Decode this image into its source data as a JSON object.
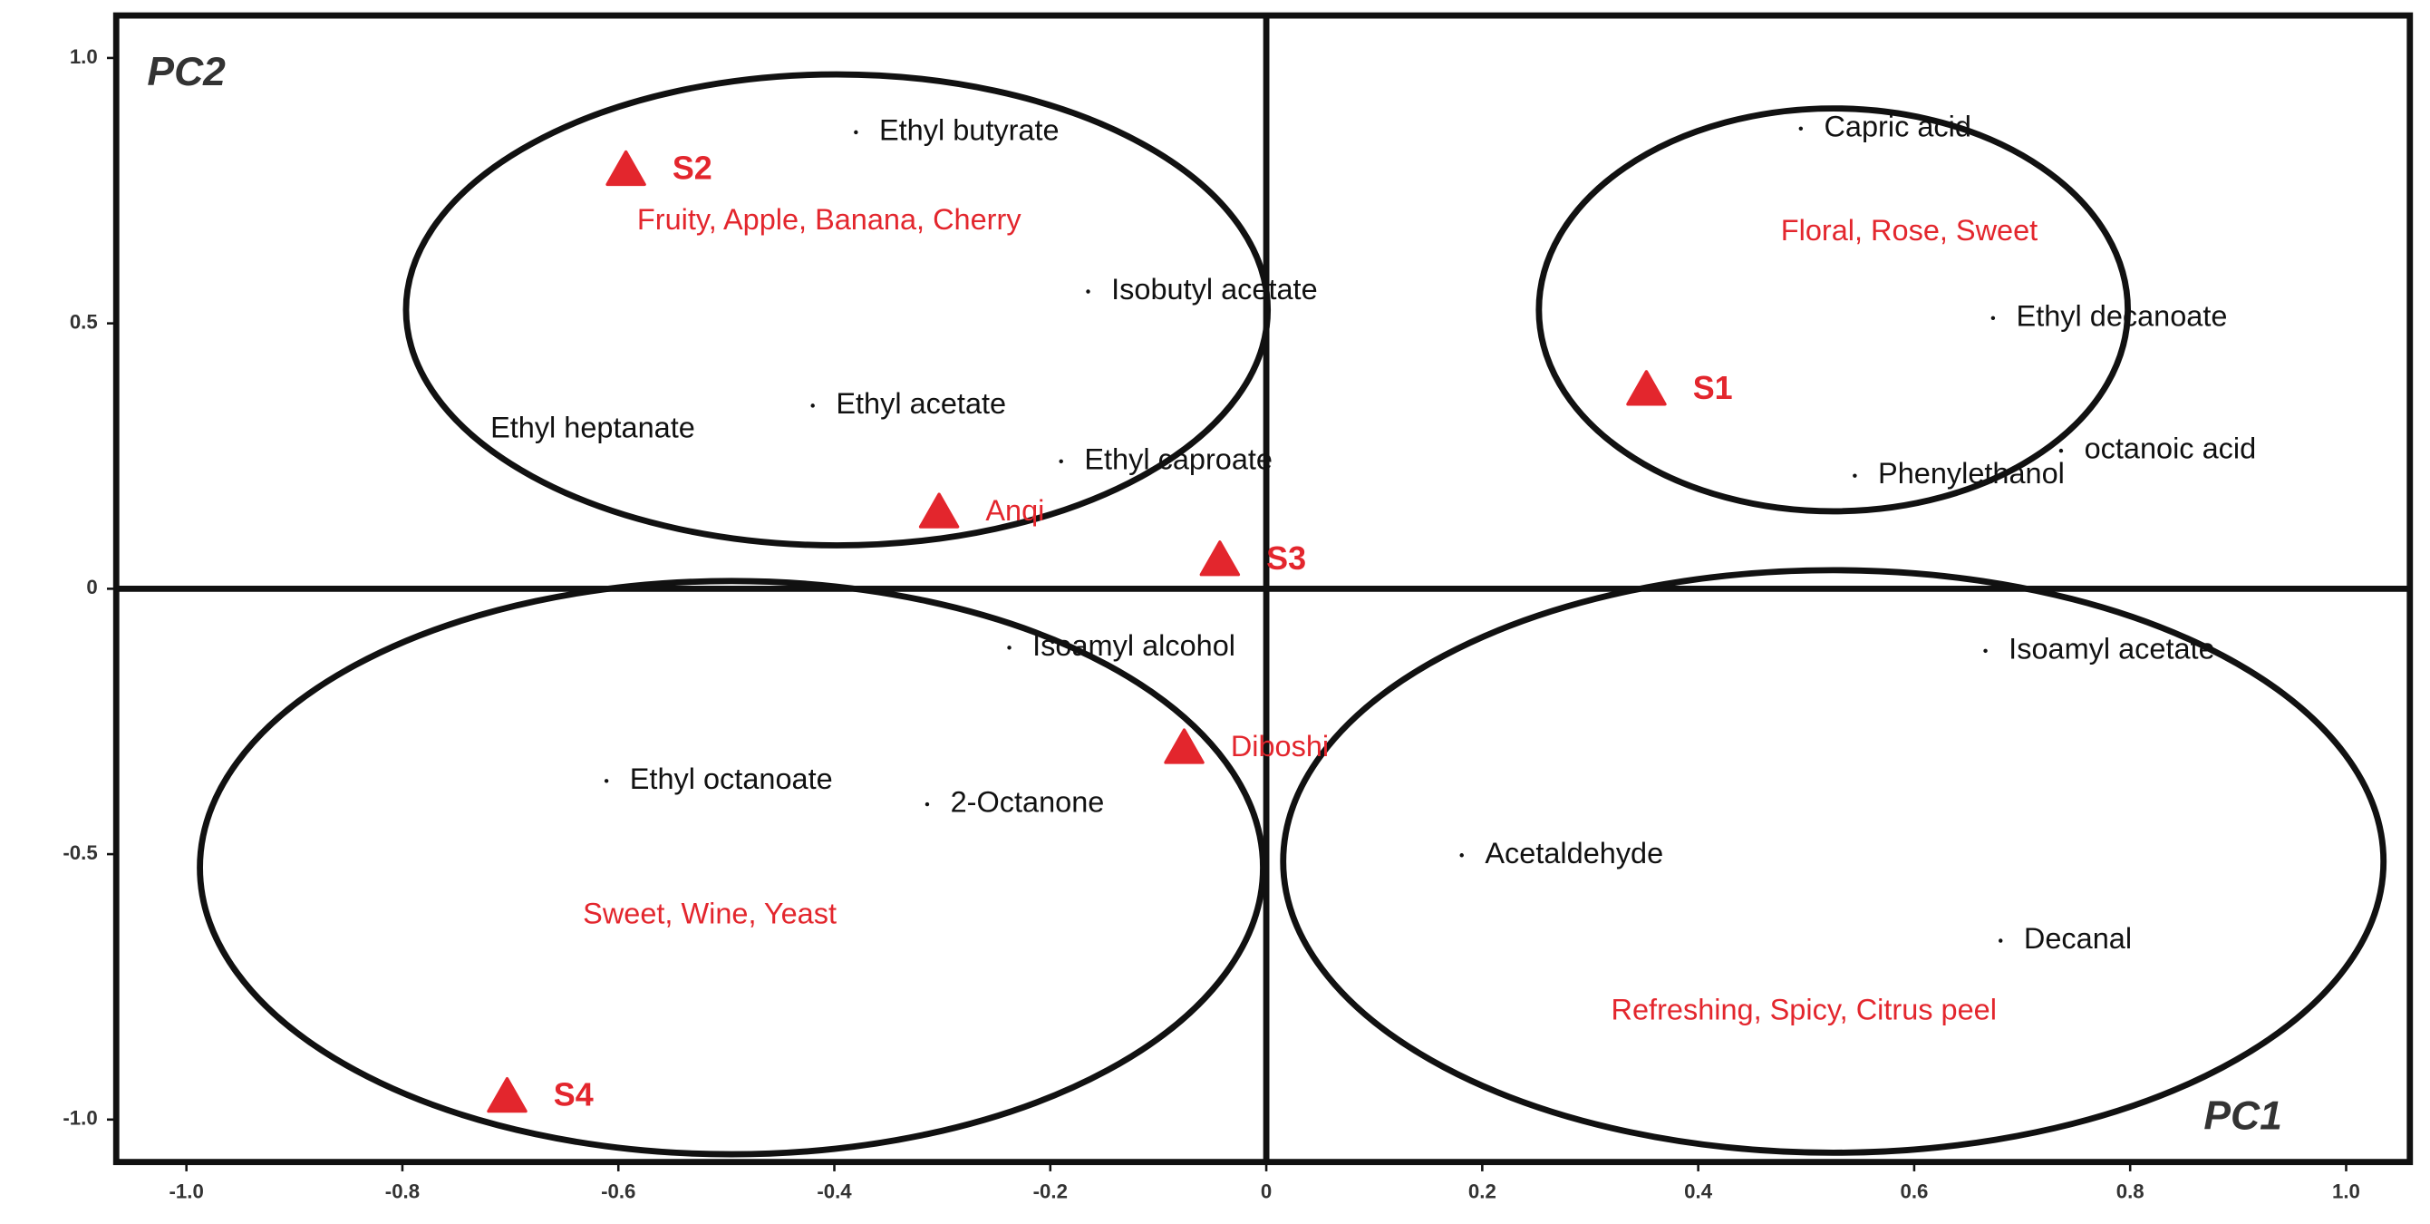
{
  "chart_data": {
    "type": "scatter",
    "xlabel": "PC1",
    "ylabel": "PC2",
    "xlim": [
      -1.065,
      1.059
    ],
    "ylim": [
      -1.08,
      1.08
    ],
    "xticks": [
      {
        "value": -1.0,
        "label": "-1.0"
      },
      -0.8,
      -0.6,
      -0.4,
      -0.2,
      0,
      0.2,
      0.4,
      0.6,
      0.8,
      {
        "value": 1.0,
        "label": "1.0"
      }
    ],
    "yticks": [
      {
        "value": 1.0,
        "label": "1.0"
      },
      0.5,
      0,
      -0.5,
      {
        "value": -1.0,
        "label": "-1.0"
      }
    ],
    "series": [
      {
        "color": "#111111",
        "marker": "dot",
        "labels": [
          "Ethyl butyrate",
          "Isobutyl acetate",
          "Ethyl heptanate",
          "Ethyl acetate",
          "Ethyl caproate",
          "Capric acid",
          "Ethyl decanoate",
          "octanoic acid",
          "Phenylethanol",
          "Isoamyl alcohol",
          "Ethyl octanoate",
          "2-Octanone",
          "Isoamyl acetate",
          "Acetaldehyde",
          "Decanal"
        ],
        "x": [
          -0.38,
          -0.165,
          -0.74,
          -0.42,
          -0.19,
          0.495,
          0.673,
          0.736,
          0.545,
          -0.238,
          -0.611,
          -0.314,
          0.666,
          0.181,
          0.68
        ],
        "values": [
          0.86,
          0.56,
          0.3,
          0.345,
          0.24,
          0.867,
          0.51,
          0.26,
          0.213,
          -0.111,
          -0.362,
          -0.406,
          -0.117,
          -0.502,
          -0.663
        ]
      },
      {
        "color": "#e3262d",
        "marker": "triangle",
        "labels": [
          "S2",
          "S1",
          "Anqi",
          "S3",
          "Diboshi",
          "S4"
        ],
        "x": [
          -0.593,
          0.352,
          -0.303,
          -0.043,
          -0.076,
          -0.703
        ],
        "values": [
          0.788,
          0.374,
          0.143,
          0.053,
          -0.301,
          -0.958
        ]
      }
    ],
    "annotations": [
      "Fruity, Apple, Banana, Cherry",
      "Floral, Rose, Sweet",
      "Sweet, Wine, Yeast",
      "Refreshing, Spicy, Citrus peel"
    ],
    "annotation_color": "#e3262d"
  }
}
